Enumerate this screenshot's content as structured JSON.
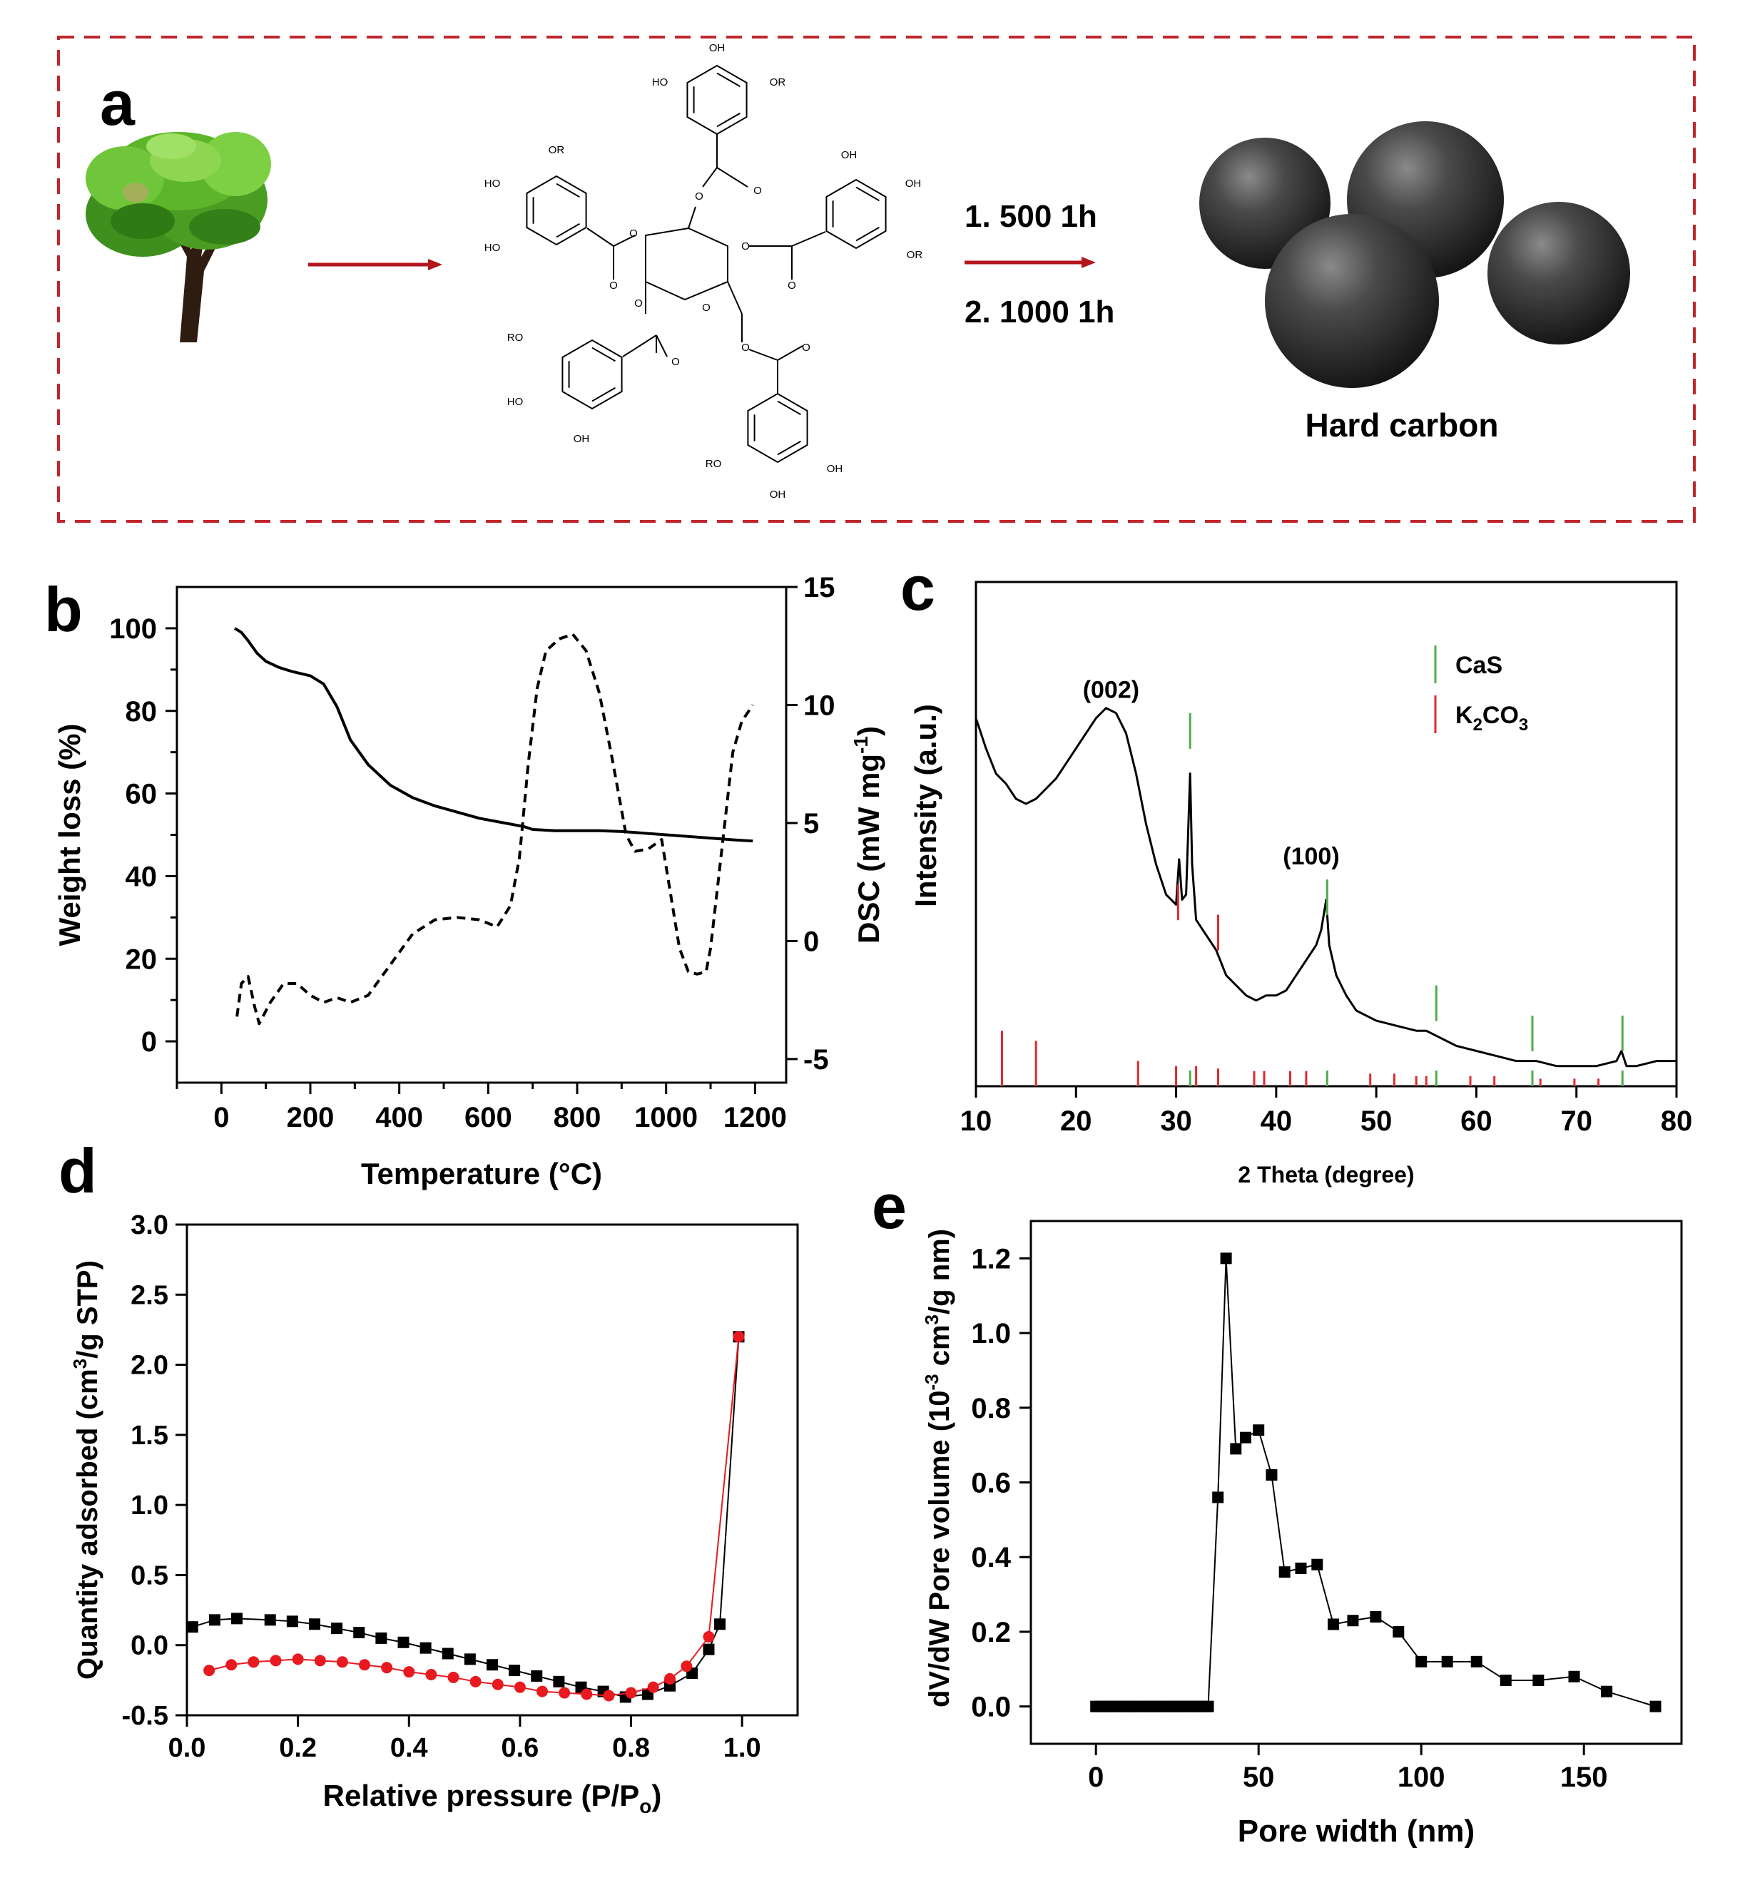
{
  "panel_a": {
    "letter": "a",
    "step1": "1. 500 1h",
    "step2": "2. 1000 1h",
    "product_label": "Hard carbon",
    "structure_labels": {
      "oh": "OH",
      "ho": "HO",
      "or": "OR",
      "ro": "RO",
      "o": "O"
    },
    "colors": {
      "border": "#c0262c",
      "arrow": "#b3161c",
      "sphere": "#2a2a2a"
    }
  },
  "chart_data": [
    {
      "panel": "b",
      "type": "line",
      "xlabel": "Temperature (°C)",
      "ylabel_left": "Weight loss (%)",
      "ylabel_right_prefix": "DSC (mW mg",
      "ylabel_right_sup": "-1",
      "ylabel_right_suffix": ")",
      "xlim": [
        -100,
        1270
      ],
      "ylim_left": [
        -10,
        110
      ],
      "ylim_right": [
        -6,
        15
      ],
      "x_ticks": [
        0,
        200,
        400,
        600,
        800,
        1000,
        1200
      ],
      "y_ticks_left": [
        0,
        20,
        40,
        60,
        80,
        100
      ],
      "y_ticks_right": [
        -5,
        0,
        5,
        10,
        15
      ],
      "series": [
        {
          "axis": "left",
          "style": "solid",
          "x": [
            30,
            45,
            60,
            80,
            100,
            130,
            160,
            200,
            230,
            260,
            290,
            330,
            380,
            430,
            480,
            530,
            580,
            630,
            680,
            700,
            750,
            800,
            850,
            900,
            950,
            1000,
            1050,
            1100,
            1150,
            1195
          ],
          "y": [
            100,
            99,
            97,
            94,
            92,
            90.5,
            89.5,
            88.5,
            86.5,
            81,
            73,
            67,
            62,
            59,
            57,
            55.5,
            54,
            53,
            52,
            51.3,
            51,
            51,
            51,
            50.8,
            50.4,
            50,
            49.6,
            49.2,
            48.8,
            48.5
          ]
        },
        {
          "axis": "right",
          "style": "dashed",
          "x": [
            35,
            45,
            60,
            75,
            85,
            110,
            140,
            170,
            200,
            230,
            260,
            290,
            330,
            380,
            430,
            480,
            530,
            580,
            620,
            650,
            670,
            690,
            710,
            730,
            760,
            790,
            820,
            850,
            880,
            910,
            930,
            960,
            990,
            1010,
            1030,
            1050,
            1070,
            1090,
            1100,
            1120,
            1150,
            1170,
            1195
          ],
          "y": [
            -3.2,
            -1.8,
            -1.5,
            -2.8,
            -3.5,
            -2.6,
            -1.8,
            -1.8,
            -2.3,
            -2.6,
            -2.4,
            -2.6,
            -2.3,
            -1,
            0.3,
            0.9,
            1,
            0.9,
            0.6,
            1.5,
            3.5,
            7.5,
            10.7,
            12.3,
            12.8,
            13,
            12.3,
            10.5,
            7.6,
            4.5,
            3.8,
            3.9,
            4.3,
            2,
            -0.3,
            -1.3,
            -1.4,
            -1.3,
            -0.3,
            3,
            8,
            9.3,
            10
          ]
        }
      ]
    },
    {
      "panel": "c",
      "type": "line",
      "xlabel": "2 Theta (degree)",
      "ylabel": "Intensity (a.u.)",
      "xlim": [
        10,
        80
      ],
      "x_ticks": [
        10,
        20,
        30,
        40,
        50,
        60,
        70,
        80
      ],
      "peak_labels": [
        {
          "text": "(002)",
          "x": 23.5
        },
        {
          "text": "(100)",
          "x": 43.5
        }
      ],
      "legend": [
        {
          "name": "CaS",
          "color": "#4cae4c"
        },
        {
          "name": "K2CO3",
          "color": "#e0292f"
        }
      ],
      "curve": {
        "x": [
          10,
          11,
          12,
          13,
          14,
          15,
          16,
          17,
          18,
          19,
          20,
          21,
          22,
          23,
          24,
          25,
          26,
          27,
          28,
          29,
          30,
          30.3,
          30.6,
          31,
          31.4,
          31.6,
          32,
          33,
          34,
          35,
          36,
          37,
          38,
          39,
          40,
          41,
          42,
          43,
          44,
          44.5,
          45,
          45.3,
          46,
          47,
          48,
          50,
          52,
          54,
          55,
          56,
          57,
          58,
          60,
          62,
          64,
          66,
          68,
          70,
          72,
          74,
          74.5,
          75,
          76,
          78,
          80
        ],
        "y": [
          0.73,
          0.67,
          0.62,
          0.6,
          0.57,
          0.56,
          0.57,
          0.59,
          0.61,
          0.64,
          0.67,
          0.7,
          0.73,
          0.75,
          0.74,
          0.7,
          0.62,
          0.52,
          0.44,
          0.38,
          0.36,
          0.45,
          0.37,
          0.38,
          0.62,
          0.44,
          0.33,
          0.3,
          0.27,
          0.22,
          0.2,
          0.18,
          0.17,
          0.18,
          0.18,
          0.19,
          0.22,
          0.25,
          0.28,
          0.31,
          0.37,
          0.28,
          0.22,
          0.18,
          0.15,
          0.13,
          0.12,
          0.11,
          0.11,
          0.1,
          0.09,
          0.08,
          0.07,
          0.06,
          0.05,
          0.05,
          0.04,
          0.04,
          0.04,
          0.05,
          0.07,
          0.04,
          0.04,
          0.05,
          0.05
        ]
      },
      "ref_lines_CaS": [
        {
          "x": 31.4,
          "h": 0.74
        },
        {
          "x": 45.1,
          "h": 0.41
        },
        {
          "x": 56.0,
          "h": 0.2
        },
        {
          "x": 65.6,
          "h": 0.14
        },
        {
          "x": 74.6,
          "h": 0.14
        }
      ],
      "ref_lines_K2CO3": [
        {
          "x": 30.2,
          "h": 0.4
        },
        {
          "x": 34.2,
          "h": 0.34
        }
      ],
      "stick_CaS": [
        31.4,
        45.1,
        56.0,
        65.6,
        74.6
      ],
      "stick_K2CO3": [
        {
          "x": 12.6,
          "h": 0.11
        },
        {
          "x": 16.0,
          "h": 0.09
        },
        {
          "x": 26.2,
          "h": 0.05
        },
        {
          "x": 30.0,
          "h": 0.04
        },
        {
          "x": 32.0,
          "h": 0.04
        },
        {
          "x": 34.2,
          "h": 0.035
        },
        {
          "x": 37.8,
          "h": 0.03
        },
        {
          "x": 38.8,
          "h": 0.03
        },
        {
          "x": 41.4,
          "h": 0.03
        },
        {
          "x": 43.0,
          "h": 0.03
        },
        {
          "x": 49.4,
          "h": 0.025
        },
        {
          "x": 51.8,
          "h": 0.025
        },
        {
          "x": 54.0,
          "h": 0.02
        },
        {
          "x": 55.0,
          "h": 0.02
        },
        {
          "x": 59.4,
          "h": 0.02
        },
        {
          "x": 61.8,
          "h": 0.02
        },
        {
          "x": 66.4,
          "h": 0.015
        },
        {
          "x": 69.8,
          "h": 0.015
        },
        {
          "x": 72.2,
          "h": 0.015
        }
      ]
    },
    {
      "panel": "d",
      "type": "scatter",
      "xlabel_prefix": "Relative pressure (P/P",
      "xlabel_sub": "o",
      "xlabel_suffix": ")",
      "ylabel_prefix": "Quantity adsorbed (cm",
      "ylabel_sup": "3",
      "ylabel_suffix": "/g STP)",
      "xlim": [
        0,
        1.1
      ],
      "ylim": [
        -0.5,
        3.0
      ],
      "x_ticks": [
        0.0,
        0.2,
        0.4,
        0.6,
        0.8,
        1.0
      ],
      "y_ticks": [
        -0.5,
        0.0,
        0.5,
        1.0,
        1.5,
        2.0,
        2.5,
        3.0
      ],
      "series": [
        {
          "name": "",
          "marker": "square",
          "color": "#000000",
          "x": [
            0.01,
            0.05,
            0.09,
            0.15,
            0.19,
            0.23,
            0.27,
            0.31,
            0.35,
            0.39,
            0.43,
            0.47,
            0.51,
            0.55,
            0.59,
            0.63,
            0.67,
            0.71,
            0.75,
            0.79,
            0.83,
            0.87,
            0.91,
            0.94,
            0.96,
            0.994
          ],
          "y": [
            0.13,
            0.18,
            0.19,
            0.18,
            0.17,
            0.15,
            0.12,
            0.09,
            0.05,
            0.02,
            -0.02,
            -0.06,
            -0.1,
            -0.14,
            -0.18,
            -0.22,
            -0.26,
            -0.3,
            -0.33,
            -0.37,
            -0.35,
            -0.29,
            -0.2,
            -0.03,
            0.15,
            2.2
          ]
        },
        {
          "name": "",
          "marker": "circle",
          "color": "#e8191f",
          "x": [
            0.04,
            0.08,
            0.12,
            0.16,
            0.2,
            0.24,
            0.28,
            0.32,
            0.36,
            0.4,
            0.44,
            0.48,
            0.52,
            0.56,
            0.6,
            0.64,
            0.68,
            0.72,
            0.76,
            0.8,
            0.84,
            0.87,
            0.9,
            0.94,
            0.994
          ],
          "y": [
            -0.18,
            -0.14,
            -0.12,
            -0.11,
            -0.1,
            -0.11,
            -0.12,
            -0.14,
            -0.16,
            -0.19,
            -0.21,
            -0.23,
            -0.26,
            -0.28,
            -0.3,
            -0.33,
            -0.34,
            -0.35,
            -0.36,
            -0.34,
            -0.3,
            -0.24,
            -0.15,
            0.06,
            2.2
          ]
        }
      ]
    },
    {
      "panel": "e",
      "type": "scatter",
      "xlabel": "Pore width (nm)",
      "ylabel_prefix": "dV/dW Pore volume (10",
      "ylabel_sup1": "-3",
      "ylabel_mid": " cm",
      "ylabel_sup2": "3",
      "ylabel_suffix": "/g nm)",
      "xlim": [
        -20,
        180
      ],
      "ylim": [
        -0.1,
        1.3
      ],
      "x_ticks": [
        0,
        50,
        100,
        150
      ],
      "y_ticks": [
        0.0,
        0.2,
        0.4,
        0.6,
        0.8,
        1.0,
        1.2
      ],
      "series": [
        {
          "name": "",
          "marker": "square",
          "color": "#000000",
          "x": [
            0,
            1.5,
            3,
            4.5,
            6,
            7.5,
            9,
            10.5,
            12,
            13.5,
            15,
            16.5,
            18,
            19.5,
            21,
            22.5,
            24,
            25.5,
            27,
            28.5,
            30,
            31.5,
            33,
            34.5,
            37.5,
            40,
            43,
            46,
            50,
            54,
            58,
            63,
            68,
            73,
            79,
            86,
            93,
            100,
            108,
            117,
            126,
            136,
            147,
            157,
            172
          ],
          "y": [
            0,
            0,
            0,
            0,
            0,
            0,
            0,
            0,
            0,
            0,
            0,
            0,
            0,
            0,
            0,
            0,
            0,
            0,
            0,
            0,
            0,
            0,
            0,
            0,
            0.56,
            1.2,
            0.69,
            0.72,
            0.74,
            0.62,
            0.36,
            0.37,
            0.38,
            0.22,
            0.23,
            0.24,
            0.2,
            0.12,
            0.12,
            0.12,
            0.07,
            0.07,
            0.08,
            0.04,
            0.0
          ]
        }
      ]
    }
  ],
  "panel_letters": {
    "b": "b",
    "c": "c",
    "d": "d",
    "e": "e"
  }
}
